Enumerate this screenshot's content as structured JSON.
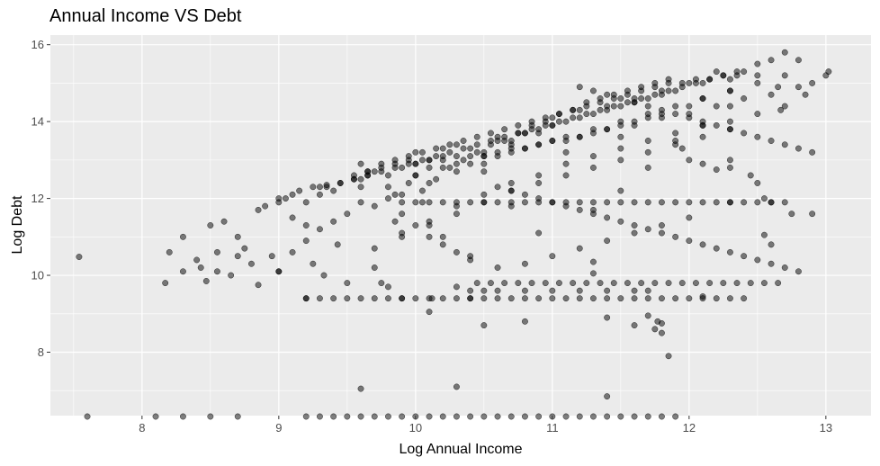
{
  "chart_data": {
    "type": "scatter",
    "title": "Annual Income VS Debt",
    "xlabel": "Log Annual Income",
    "ylabel": "Log Debt",
    "xlim": [
      7.33,
      13.33
    ],
    "ylim": [
      6.35,
      16.25
    ],
    "xticks": [
      8,
      9,
      10,
      11,
      12,
      13
    ],
    "yticks": [
      8,
      10,
      12,
      14,
      16
    ],
    "xtick_labels": [
      "8",
      "9",
      "10",
      "11",
      "12",
      "13"
    ],
    "ytick_labels": [
      "8",
      "10",
      "12",
      "14",
      "16"
    ],
    "grid": true,
    "legend": "none",
    "panel_color": "#ebebeb",
    "grid_color": "#ffffff",
    "point_color": "#000000",
    "point_alpha": 0.5,
    "series": [
      {
        "x": [
          7.54,
          8.17,
          8.3,
          8.3,
          8.43,
          8.47,
          8.5,
          8.55,
          8.7,
          8.7,
          8.85,
          9.0,
          9.0,
          9.1,
          9.2,
          9.25,
          9.33,
          9.43,
          9.5,
          9.6,
          9.7,
          9.75,
          9.85,
          9.9,
          10.0,
          10.05,
          10.1,
          10.2,
          10.3,
          10.4,
          10.5,
          10.6,
          10.7,
          10.8,
          10.9,
          11.0,
          11.1,
          11.2,
          11.3,
          11.4,
          11.5,
          11.6,
          11.7,
          11.8,
          11.9,
          12.0,
          12.1,
          12.2,
          12.3,
          12.4,
          12.5,
          12.6,
          12.7,
          12.8,
          12.9,
          13.0,
          13.02,
          12.65,
          12.55,
          12.6,
          12.75,
          11.85,
          12.1,
          12.9,
          12.55,
          12.6,
          12.85,
          12.67,
          10.8,
          10.5,
          11.4,
          11.6,
          11.8,
          11.77,
          12.3,
          12.3,
          12.5,
          12.45,
          12.3,
          12.2,
          12.1,
          12.0,
          11.95,
          11.5,
          11.0,
          10.9,
          10.7,
          10.5,
          10.3,
          10.0,
          9.8,
          9.6,
          9.5,
          9.4,
          9.3,
          9.2,
          9.6,
          9.8,
          10.0,
          10.2,
          10.4,
          10.6,
          10.8,
          11.0,
          11.2,
          11.4,
          11.6,
          11.8,
          9.7,
          9.9,
          10.1,
          10.3,
          10.5,
          10.7,
          10.9,
          11.1,
          11.3,
          11.5,
          11.7,
          11.9,
          12.1,
          12.3,
          12.5,
          12.7,
          10.15,
          10.25,
          10.35,
          10.45,
          10.55,
          10.65,
          10.75,
          10.85,
          10.95,
          11.05,
          11.15,
          11.25,
          11.35,
          11.45,
          11.55,
          11.65,
          11.75,
          11.85,
          9.8,
          9.85,
          9.95,
          10.05,
          10.0,
          10.1,
          10.2,
          10.3,
          10.4,
          10.6,
          10.8,
          11.0,
          11.2,
          11.4,
          11.6,
          11.8,
          12.0,
          10.1,
          10.2,
          10.5,
          10.7,
          10.9,
          11.1,
          11.3,
          11.5,
          11.7,
          11.9,
          12.1,
          12.3,
          12.5,
          10.0,
          10.2,
          10.4,
          10.6,
          10.8,
          11.0,
          11.2,
          11.4,
          11.6,
          11.8,
          12.0,
          12.2,
          12.4,
          12.6,
          12.8,
          9.9,
          10.1,
          10.3,
          10.5,
          10.7,
          10.9,
          11.1,
          11.3,
          11.5,
          11.7,
          11.9,
          12.1,
          12.3,
          12.5,
          12.7,
          9.7,
          9.9,
          10.1,
          10.3,
          10.5,
          10.7,
          10.9,
          11.1,
          11.3,
          11.5,
          11.7,
          11.9,
          12.1,
          12.3,
          9.55,
          9.65,
          9.75,
          9.85,
          9.95,
          10.05,
          10.15,
          10.25,
          10.35,
          10.45,
          10.55,
          10.65,
          10.75,
          10.85,
          10.95,
          11.05,
          11.15,
          11.25,
          11.35,
          11.45,
          11.55,
          11.65,
          11.75,
          11.85,
          11.95,
          12.05,
          12.15,
          12.25,
          12.35,
          9.2,
          9.3,
          9.4,
          9.5,
          9.6,
          9.7,
          9.8,
          9.9,
          10.0,
          10.1,
          10.2,
          10.3,
          10.4,
          10.5,
          10.6,
          10.7,
          10.8,
          10.9,
          11.0,
          11.1,
          11.2,
          11.3,
          11.4,
          11.5,
          11.6,
          11.7,
          11.8,
          11.9,
          12.0,
          12.1,
          12.2,
          12.3,
          12.4,
          10.45,
          10.55,
          10.65,
          10.75,
          10.85,
          10.95,
          11.05,
          11.15,
          11.25,
          11.35,
          11.45,
          11.55,
          11.65,
          11.75,
          11.85,
          11.95,
          12.05,
          12.15,
          12.25,
          12.35,
          12.45,
          12.55,
          12.65,
          9.9,
          10.0,
          10.1,
          10.2,
          10.3,
          10.4,
          10.5,
          10.6,
          10.7,
          10.8,
          10.9,
          11.0,
          11.1,
          11.2,
          11.3,
          11.4,
          11.5,
          11.6,
          11.7,
          11.8,
          11.9,
          12.0,
          12.1,
          12.2,
          12.3,
          12.4,
          12.5,
          12.6,
          12.7,
          10.6,
          10.7,
          10.8,
          10.9,
          11.0,
          11.1,
          11.2,
          11.3,
          11.4,
          11.5,
          11.6,
          11.7,
          11.8,
          11.9,
          12.0,
          12.1,
          12.2,
          12.3,
          12.4,
          12.5,
          12.6,
          12.7,
          12.8,
          11.2,
          11.3,
          11.4,
          11.5,
          11.6,
          11.7,
          11.8,
          11.9,
          12.0,
          12.1,
          12.2,
          12.3,
          12.4,
          12.5,
          12.6,
          12.7,
          12.8,
          12.9,
          8.1,
          8.3,
          8.5,
          8.7,
          9.2,
          9.3,
          9.4,
          9.5,
          9.6,
          9.7,
          9.8,
          9.9,
          10.0,
          10.1,
          10.2,
          10.3,
          10.4,
          10.5,
          10.6,
          10.7,
          10.8,
          10.9,
          11.0,
          11.1,
          11.2,
          11.3,
          11.4,
          11.5,
          11.6,
          11.7,
          11.8,
          11.9,
          7.6,
          9.6,
          10.3,
          11.4,
          11.8,
          11.7,
          11.75,
          11.3,
          11.3,
          10.1,
          10.12,
          10.4,
          10.5,
          10.6,
          10.8,
          11.0,
          11.2,
          11.4,
          11.6,
          11.7,
          9.2,
          9.9,
          10.4,
          9.8,
          10.3,
          9.6,
          9.65,
          9.7,
          9.9,
          10.0,
          10.1,
          10.2,
          10.3,
          10.4,
          10.5,
          10.6,
          10.7,
          10.8,
          10.9,
          11.0,
          11.1,
          11.2,
          11.3,
          11.4,
          11.5,
          11.6,
          11.7,
          11.8,
          12.0,
          12.1,
          12.3,
          9.3,
          9.35,
          9.45,
          9.55,
          9.65,
          9.75,
          9.85,
          9.95,
          10.05,
          10.15,
          10.25,
          10.35,
          10.45,
          10.55,
          10.65,
          10.75,
          10.85,
          10.95,
          11.05,
          11.15,
          11.25,
          11.35,
          11.45,
          11.55,
          11.65,
          11.75,
          11.85,
          11.95,
          12.05,
          12.15,
          12.25,
          12.35,
          8.85,
          8.9,
          9.0,
          9.05,
          9.1,
          9.15,
          9.25,
          9.35,
          9.45,
          9.55,
          9.65,
          9.75,
          9.85,
          9.95,
          8.2,
          8.4,
          8.55,
          8.6,
          8.65,
          8.75,
          8.8,
          8.95,
          9.0,
          9.1,
          9.2,
          9.3,
          9.4
        ],
        "y": [
          10.48,
          9.8,
          10.1,
          11.0,
          10.2,
          9.85,
          11.3,
          10.1,
          11.0,
          10.5,
          9.75,
          10.1,
          12.0,
          11.5,
          11.3,
          10.3,
          10.0,
          10.8,
          9.8,
          12.9,
          10.2,
          9.8,
          12.1,
          11.6,
          13.2,
          11.9,
          12.8,
          11.0,
          13.4,
          10.5,
          12.7,
          13.6,
          11.8,
          13.7,
          11.1,
          14.1,
          13.2,
          14.3,
          11.7,
          14.4,
          12.2,
          14.6,
          12.8,
          14.8,
          13.5,
          15.0,
          13.9,
          15.3,
          14.4,
          15.3,
          15.5,
          15.6,
          15.8,
          15.6,
          15.0,
          15.2,
          15.3,
          14.9,
          12.0,
          11.9,
          11.6,
          7.9,
          9.45,
          11.6,
          11.05,
          10.8,
          14.7,
          14.3,
          8.8,
          8.7,
          8.9,
          8.7,
          8.5,
          8.8,
          11.9,
          12.8,
          12.4,
          12.6,
          13.0,
          12.75,
          12.9,
          13.0,
          13.3,
          13.6,
          13.9,
          13.7,
          13.4,
          13.1,
          12.9,
          12.6,
          12.3,
          11.9,
          11.6,
          11.4,
          11.2,
          10.9,
          12.3,
          12.6,
          12.9,
          13.1,
          13.3,
          13.5,
          13.7,
          13.9,
          14.1,
          14.3,
          14.5,
          14.7,
          11.8,
          12.1,
          12.4,
          12.7,
          12.9,
          13.2,
          13.4,
          13.6,
          13.8,
          14.0,
          14.2,
          14.4,
          14.6,
          14.8,
          15.0,
          15.2,
          12.5,
          12.8,
          13.0,
          13.2,
          13.4,
          13.5,
          13.7,
          13.9,
          14.0,
          14.2,
          14.3,
          14.5,
          14.6,
          14.7,
          14.8,
          14.9,
          15.0,
          15.1,
          12.0,
          11.4,
          12.4,
          12.2,
          11.3,
          11.0,
          10.8,
          10.6,
          10.4,
          10.2,
          10.3,
          10.5,
          10.7,
          10.9,
          11.1,
          11.3,
          11.5,
          13.0,
          13.3,
          13.1,
          13.5,
          13.8,
          14.0,
          14.2,
          14.4,
          14.6,
          14.8,
          15.0,
          15.1,
          15.2,
          12.6,
          12.8,
          12.9,
          13.1,
          13.3,
          13.5,
          13.6,
          13.8,
          13.9,
          14.1,
          14.2,
          14.4,
          14.6,
          14.7,
          14.9,
          11.1,
          11.4,
          11.8,
          12.1,
          12.4,
          12.6,
          12.9,
          13.1,
          13.3,
          13.5,
          13.7,
          13.9,
          14.0,
          14.2,
          14.4,
          10.7,
          11.0,
          11.3,
          11.6,
          11.9,
          12.2,
          12.4,
          12.6,
          12.8,
          13.0,
          13.2,
          13.4,
          13.6,
          13.8,
          12.5,
          12.7,
          12.9,
          13.0,
          13.1,
          13.2,
          13.3,
          13.4,
          13.5,
          13.6,
          13.7,
          13.8,
          13.9,
          14.0,
          14.1,
          14.2,
          14.3,
          14.4,
          14.5,
          14.6,
          14.7,
          14.8,
          14.9,
          15.0,
          15.0,
          15.1,
          15.1,
          15.2,
          15.2,
          9.4,
          9.4,
          9.4,
          9.4,
          9.4,
          9.4,
          9.4,
          9.4,
          9.4,
          9.4,
          9.4,
          9.4,
          9.4,
          9.4,
          9.4,
          9.4,
          9.4,
          9.4,
          9.4,
          9.4,
          9.4,
          9.4,
          9.4,
          9.4,
          9.4,
          9.4,
          9.4,
          9.4,
          9.4,
          9.4,
          9.4,
          9.4,
          9.4,
          9.8,
          9.8,
          9.8,
          9.8,
          9.8,
          9.8,
          9.8,
          9.8,
          9.8,
          9.8,
          9.8,
          9.8,
          9.8,
          9.8,
          9.8,
          9.8,
          9.8,
          9.8,
          9.8,
          9.8,
          9.8,
          9.8,
          9.8,
          11.9,
          11.9,
          11.9,
          11.9,
          11.9,
          11.9,
          11.9,
          11.9,
          11.9,
          11.9,
          11.9,
          11.9,
          11.9,
          11.9,
          11.9,
          11.9,
          11.9,
          11.9,
          11.9,
          11.9,
          11.9,
          11.9,
          11.9,
          11.9,
          11.9,
          11.9,
          11.9,
          11.9,
          11.9,
          12.3,
          12.2,
          12.1,
          12.0,
          11.9,
          11.8,
          11.7,
          11.6,
          11.5,
          11.4,
          11.3,
          11.2,
          11.1,
          11.0,
          10.9,
          10.8,
          10.7,
          10.6,
          10.5,
          10.4,
          10.3,
          10.2,
          10.1,
          14.9,
          14.8,
          14.7,
          14.6,
          14.5,
          14.4,
          14.3,
          14.2,
          14.1,
          14.0,
          13.9,
          13.8,
          13.7,
          13.6,
          13.5,
          13.4,
          13.3,
          13.2,
          6.3,
          6.3,
          6.3,
          6.3,
          6.3,
          6.3,
          6.3,
          6.3,
          6.3,
          6.3,
          6.3,
          6.3,
          6.3,
          6.3,
          6.3,
          6.3,
          6.3,
          6.3,
          6.3,
          6.3,
          6.3,
          6.3,
          6.3,
          6.3,
          6.3,
          6.3,
          6.3,
          6.3,
          6.3,
          6.3,
          6.3,
          6.3,
          6.3,
          7.05,
          7.1,
          6.85,
          8.75,
          8.95,
          8.6,
          10.35,
          10.05,
          9.05,
          9.4,
          9.6,
          9.6,
          9.6,
          9.6,
          9.6,
          9.6,
          9.6,
          9.6,
          9.6,
          9.4,
          9.4,
          9.4,
          9.7,
          9.7,
          12.5,
          12.6,
          12.7,
          12.8,
          12.9,
          13.0,
          13.0,
          13.1,
          13.1,
          13.2,
          13.2,
          13.3,
          13.3,
          13.4,
          13.5,
          13.5,
          13.6,
          13.7,
          13.8,
          13.9,
          14.0,
          14.1,
          14.2,
          14.4,
          14.6,
          14.8,
          12.3,
          12.35,
          12.4,
          12.6,
          12.7,
          12.8,
          12.9,
          13.0,
          13.0,
          13.1,
          13.2,
          13.3,
          13.4,
          13.5,
          13.6,
          13.7,
          13.8,
          13.9,
          14.0,
          14.1,
          14.2,
          14.3,
          14.4,
          14.5,
          14.6,
          14.7,
          14.8,
          14.9,
          15.0,
          15.1,
          15.2,
          15.3,
          11.7,
          11.8,
          11.9,
          12.0,
          12.1,
          12.2,
          12.3,
          12.3,
          12.4,
          12.5,
          12.6,
          12.7,
          12.8,
          12.9,
          10.6,
          10.4,
          10.6,
          11.4,
          10.0,
          10.7,
          10.3,
          10.5,
          10.1,
          10.6,
          11.9,
          12.1,
          12.2
        ]
      }
    ]
  }
}
